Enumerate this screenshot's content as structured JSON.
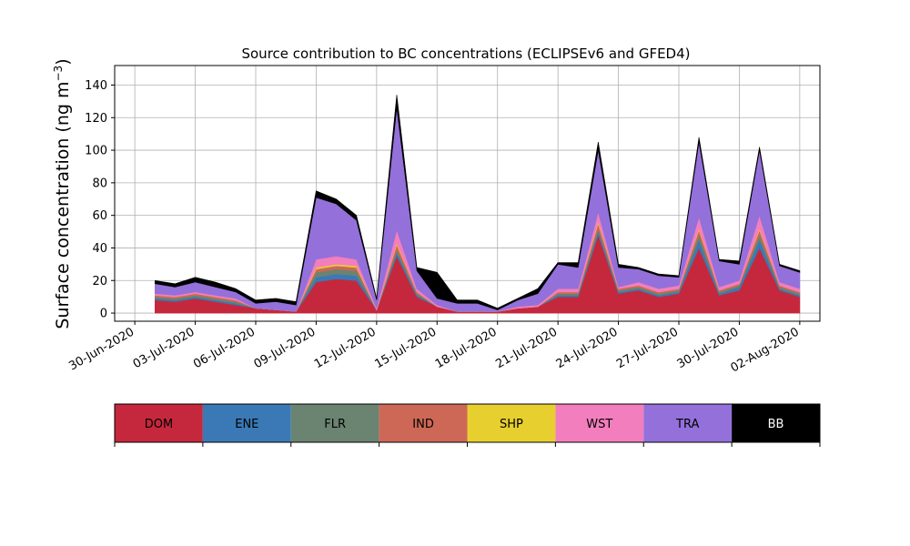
{
  "chart_data": {
    "type": "area",
    "stacked": true,
    "title": "Source contribution to BC concentrations (ECLIPSEv6 and GFED4)",
    "ylabel": "Surface concentration (ng m⁻³)",
    "ylabel_main": "Surface concentration (ng m",
    "ylabel_exp": "−3",
    "ylabel_close": ")",
    "xlabel": "",
    "ylim": [
      -5,
      152
    ],
    "xlim": [
      "2020-06-29",
      "2020-08-03"
    ],
    "grid": true,
    "y_ticks": [
      0,
      20,
      40,
      60,
      80,
      100,
      120,
      140
    ],
    "x_ticks": [
      "30-Jun-2020",
      "03-Jul-2020",
      "06-Jul-2020",
      "09-Jul-2020",
      "12-Jul-2020",
      "15-Jul-2020",
      "18-Jul-2020",
      "21-Jul-2020",
      "24-Jul-2020",
      "27-Jul-2020",
      "30-Jul-2020",
      "02-Aug-2020"
    ],
    "x_tick_dates": [
      "2020-06-30",
      "2020-07-03",
      "2020-07-06",
      "2020-07-09",
      "2020-07-12",
      "2020-07-15",
      "2020-07-18",
      "2020-07-21",
      "2020-07-24",
      "2020-07-27",
      "2020-07-30",
      "2020-08-02"
    ],
    "dates": [
      "2020-07-01",
      "2020-07-02",
      "2020-07-03",
      "2020-07-04",
      "2020-07-05",
      "2020-07-06",
      "2020-07-07",
      "2020-07-08",
      "2020-07-09",
      "2020-07-10",
      "2020-07-11",
      "2020-07-12",
      "2020-07-13",
      "2020-07-14",
      "2020-07-15",
      "2020-07-16",
      "2020-07-17",
      "2020-07-18",
      "2020-07-19",
      "2020-07-20",
      "2020-07-21",
      "2020-07-22",
      "2020-07-23",
      "2020-07-24",
      "2020-07-25",
      "2020-07-26",
      "2020-07-27",
      "2020-07-28",
      "2020-07-29",
      "2020-07-30",
      "2020-07-31",
      "2020-08-01",
      "2020-08-02"
    ],
    "series": [
      {
        "name": "DOM",
        "color": "#c5283d",
        "values": [
          8,
          7,
          9,
          7,
          5,
          3,
          2,
          1,
          19,
          21,
          20,
          2,
          35,
          10,
          4,
          1,
          1,
          1,
          3,
          4,
          10,
          10,
          48,
          12,
          14,
          10,
          12,
          40,
          11,
          14,
          40,
          14,
          10
        ]
      },
      {
        "name": "ENE",
        "color": "#3a79b5",
        "values": [
          1,
          1,
          1,
          1,
          1,
          0,
          0,
          0,
          3,
          3,
          3,
          0,
          2,
          1,
          0,
          0,
          0,
          0,
          0,
          0,
          1,
          1,
          2,
          1,
          1,
          1,
          1,
          5,
          1,
          2,
          5,
          1,
          1
        ]
      },
      {
        "name": "FLR",
        "color": "#6b8371",
        "values": [
          1,
          1,
          1,
          1,
          1,
          0,
          0,
          0,
          3,
          3,
          3,
          0,
          2,
          1,
          0,
          0,
          0,
          0,
          0,
          0,
          1,
          1,
          2,
          1,
          1,
          1,
          1,
          3,
          1,
          1,
          3,
          1,
          1
        ]
      },
      {
        "name": "IND",
        "color": "#cd6856",
        "values": [
          1,
          1,
          1,
          1,
          1,
          0,
          0,
          0,
          2,
          2,
          2,
          0,
          3,
          1,
          0,
          0,
          0,
          0,
          0,
          0,
          1,
          1,
          3,
          1,
          1,
          1,
          1,
          3,
          1,
          1,
          3,
          1,
          1
        ]
      },
      {
        "name": "SHP",
        "color": "#e7cf30",
        "values": [
          0,
          0,
          0,
          0,
          0,
          0,
          0,
          0,
          1,
          1,
          1,
          0,
          1,
          0,
          0,
          0,
          0,
          0,
          0,
          0,
          0,
          0,
          1,
          0,
          0,
          0,
          0,
          1,
          0,
          0,
          1,
          0,
          0
        ]
      },
      {
        "name": "WST",
        "color": "#f37ebd",
        "values": [
          1,
          1,
          1,
          1,
          1,
          0,
          0,
          0,
          5,
          5,
          4,
          1,
          8,
          2,
          1,
          0,
          0,
          0,
          1,
          1,
          2,
          2,
          6,
          1,
          2,
          2,
          2,
          7,
          2,
          2,
          8,
          2,
          2
        ]
      },
      {
        "name": "TRA",
        "color": "#9470da",
        "values": [
          6,
          5,
          6,
          5,
          4,
          3,
          5,
          4,
          38,
          32,
          24,
          5,
          75,
          11,
          4,
          5,
          5,
          1,
          4,
          7,
          15,
          13,
          38,
          12,
          8,
          8,
          5,
          46,
          16,
          10,
          40,
          10,
          10
        ]
      },
      {
        "name": "BB",
        "color": "#000000",
        "values": [
          2,
          2,
          3,
          3,
          2,
          2,
          2,
          2,
          4,
          3,
          3,
          1,
          8,
          2,
          16,
          2,
          2,
          1,
          1,
          3,
          1,
          3,
          5,
          2,
          1,
          1,
          1,
          3,
          1,
          2,
          2,
          1,
          1
        ]
      }
    ],
    "legend": {
      "placement": "bottom colorbar",
      "labels": [
        "DOM",
        "ENE",
        "FLR",
        "IND",
        "SHP",
        "WST",
        "TRA",
        "BB"
      ],
      "colors": [
        "#c5283d",
        "#3a79b5",
        "#6b8371",
        "#cd6856",
        "#e7cf30",
        "#f37ebd",
        "#9470da",
        "#000000"
      ]
    }
  }
}
